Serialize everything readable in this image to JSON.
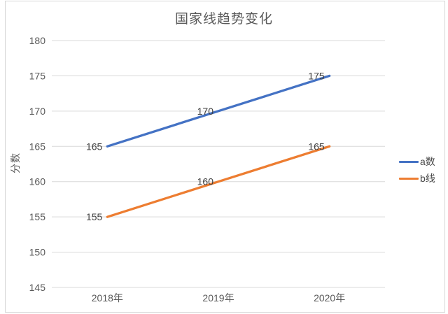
{
  "chart_data": {
    "type": "line",
    "title": "国家线趋势变化",
    "categories": [
      "2018年",
      "2019年",
      "2020年"
    ],
    "series": [
      {
        "name": "a数",
        "values": [
          165,
          170,
          175
        ],
        "color": "#4472C4"
      },
      {
        "name": "b线",
        "values": [
          155,
          160,
          165
        ],
        "color": "#ED7D31"
      }
    ],
    "xlabel": "",
    "ylabel": "分数",
    "ylim": [
      145,
      180
    ],
    "ytick_step": 5,
    "grid": true,
    "legend_position": "right",
    "data_labels_position": "left"
  },
  "colors": {
    "gridline": "#d9d9d9",
    "axis_text": "#595959",
    "data_label_text": "#404040",
    "title_text": "#595959",
    "background": "#ffffff",
    "frame_border": "#d6d6d6"
  }
}
